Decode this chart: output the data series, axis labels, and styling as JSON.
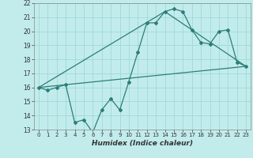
{
  "xlabel": "Humidex (Indice chaleur)",
  "bg_color": "#c2ecec",
  "grid_color": "#a0d8d8",
  "line_color": "#2d7d78",
  "xlim": [
    -0.5,
    23.5
  ],
  "ylim": [
    13,
    22
  ],
  "xticks": [
    0,
    1,
    2,
    3,
    4,
    5,
    6,
    7,
    8,
    9,
    10,
    11,
    12,
    13,
    14,
    15,
    16,
    17,
    18,
    19,
    20,
    21,
    22,
    23
  ],
  "yticks": [
    13,
    14,
    15,
    16,
    17,
    18,
    19,
    20,
    21,
    22
  ],
  "series1_x": [
    0,
    1,
    2,
    3,
    4,
    5,
    6,
    7,
    8,
    9,
    10,
    11,
    12,
    13,
    14,
    15,
    16,
    17,
    18,
    19,
    20,
    21,
    22,
    23
  ],
  "series1_y": [
    16.0,
    15.8,
    16.0,
    16.2,
    13.5,
    13.7,
    12.8,
    14.4,
    15.2,
    14.4,
    16.4,
    18.5,
    20.6,
    20.6,
    21.4,
    21.6,
    21.4,
    20.1,
    19.2,
    19.1,
    20.0,
    20.1,
    17.8,
    17.5
  ],
  "series2_x": [
    0,
    23
  ],
  "series2_y": [
    16.0,
    17.5
  ],
  "series3_x": [
    0,
    14,
    23
  ],
  "series3_y": [
    16.0,
    21.4,
    17.5
  ]
}
